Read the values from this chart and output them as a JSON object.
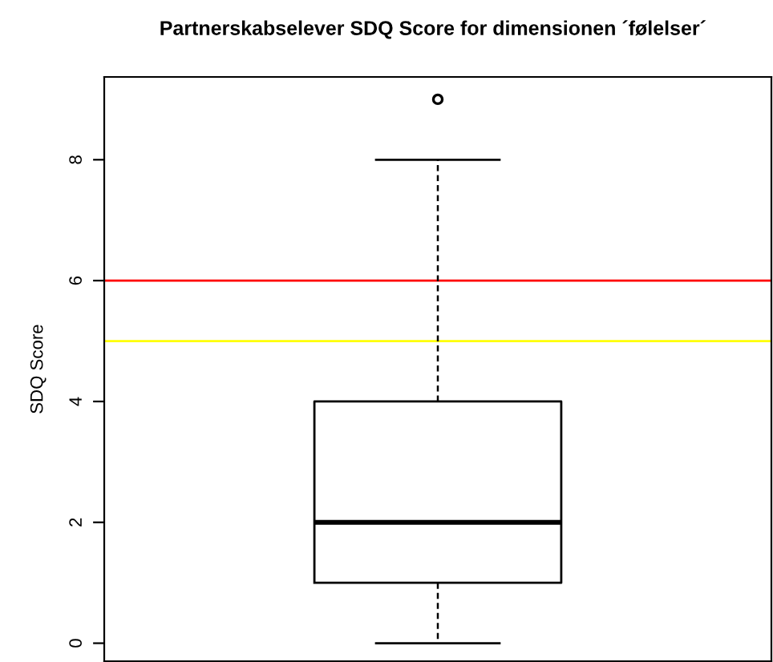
{
  "chart_data": {
    "type": "box",
    "title": "Partnerskabselever SDQ Score for dimensionen ´følelser´",
    "ylabel": "SDQ Score",
    "categories": [
      null
    ],
    "boxes": [
      {
        "low": 0,
        "q1": 1,
        "median": 2,
        "q3": 4,
        "high": 8,
        "outliers": [
          9
        ]
      }
    ],
    "ylim": [
      -0.3,
      9.37
    ],
    "yticks": [
      0,
      2,
      4,
      6,
      8
    ],
    "tick_labels": "y",
    "ref_lines": [
      {
        "axis": "y",
        "value": 6,
        "color": "#ff0000"
      },
      {
        "axis": "y",
        "value": 5,
        "color": "#ffff00"
      }
    ]
  }
}
